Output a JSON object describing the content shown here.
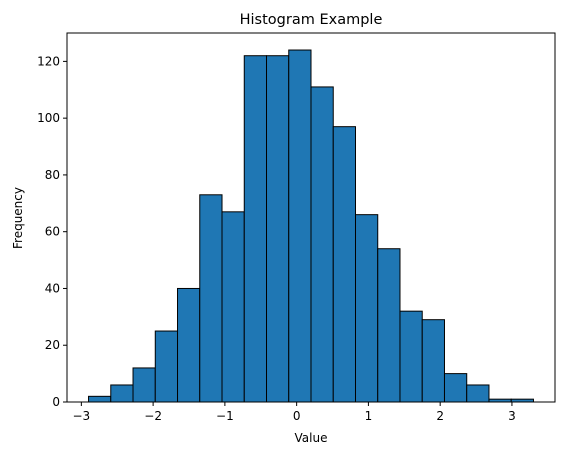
{
  "chart_data": {
    "type": "bar",
    "title": "Histogram Example",
    "xlabel": "Value",
    "ylabel": "Frequency",
    "bin_edges": [
      -2.9,
      -2.59,
      -2.28,
      -1.97,
      -1.66,
      -1.35,
      -1.04,
      -0.73,
      -0.42,
      -0.11,
      0.2,
      0.51,
      0.82,
      1.13,
      1.44,
      1.75,
      2.06,
      2.37,
      2.68,
      2.99,
      3.3
    ],
    "counts": [
      2,
      6,
      12,
      25,
      40,
      73,
      67,
      122,
      122,
      124,
      111,
      97,
      66,
      54,
      32,
      29,
      10,
      6,
      1,
      1
    ],
    "xlim": [
      -3.2,
      3.6
    ],
    "ylim": [
      0,
      130
    ],
    "xticks": [
      -3,
      -2,
      -1,
      0,
      1,
      2,
      3
    ],
    "xtick_labels": [
      "−3",
      "−2",
      "−1",
      "0",
      "1",
      "2",
      "3"
    ],
    "yticks": [
      0,
      20,
      40,
      60,
      80,
      100,
      120
    ],
    "ytick_labels": [
      "0",
      "20",
      "40",
      "60",
      "80",
      "100",
      "120"
    ],
    "grid": false,
    "legend": "none",
    "colors": {
      "bar_fill": "#1f77b4",
      "bar_edge": "#000000"
    }
  }
}
